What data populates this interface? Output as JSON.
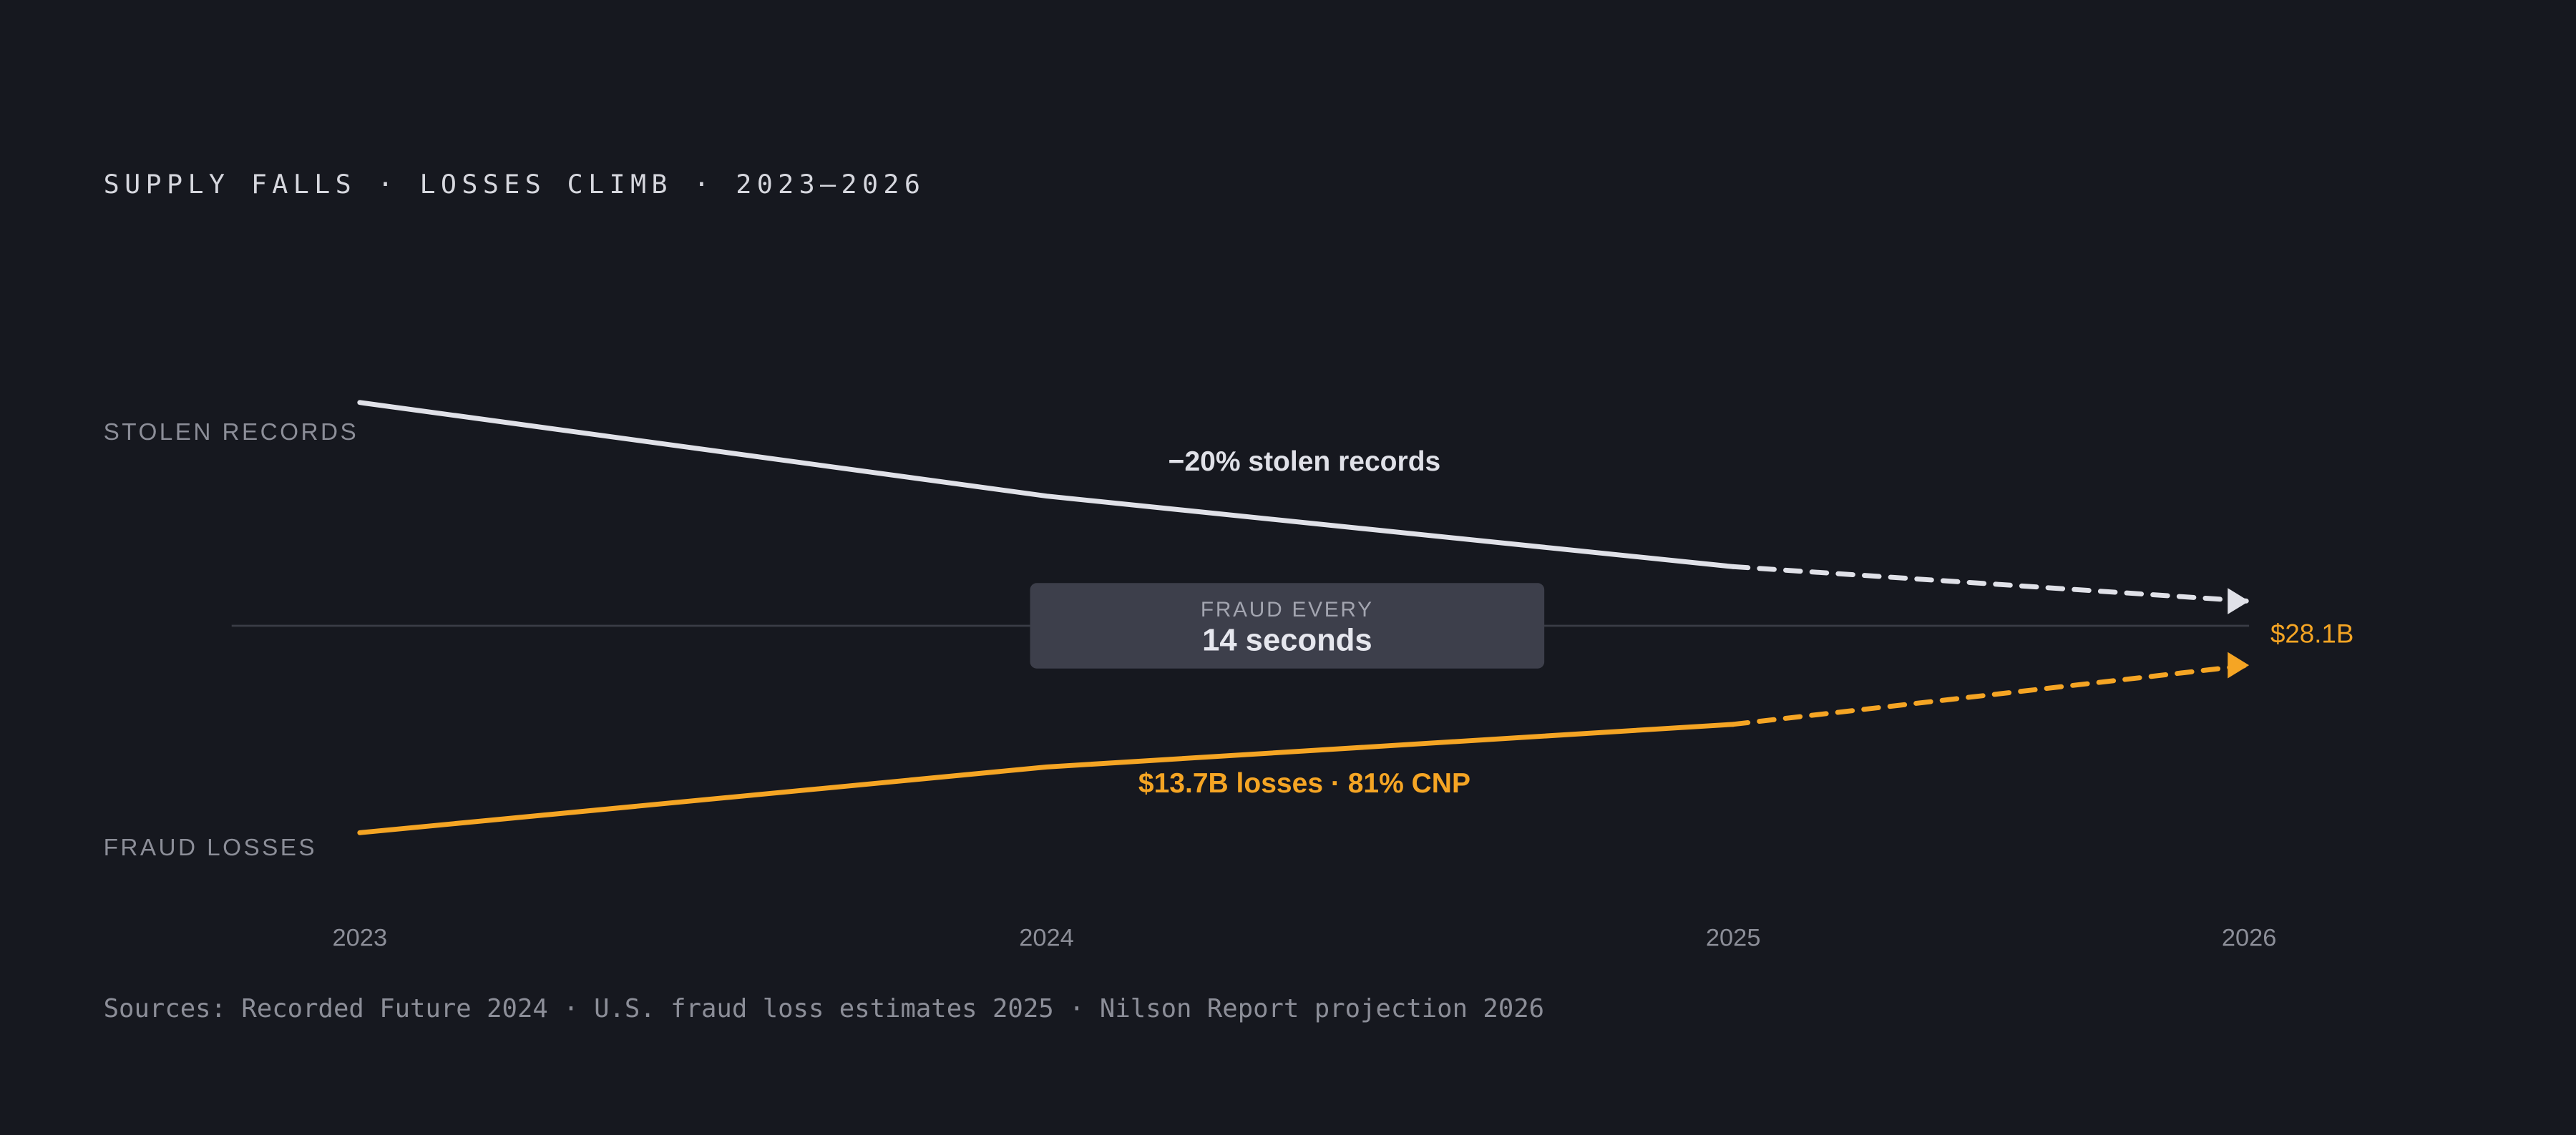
{
  "chart_data": {
    "type": "line",
    "title": "SUPPLY FALLS · LOSSES CLIMB · 2023–2026",
    "categories": [
      "2023",
      "2024",
      "2025",
      "2026"
    ],
    "series": [
      {
        "name": "STOLEN RECORDS",
        "color": "#e0e1e8",
        "values": [
          136,
          79,
          36,
          15
        ]
      },
      {
        "name": "FRAUD LOSSES",
        "color": "#f5a524",
        "values": [
          -126,
          -86,
          -60,
          -24
        ]
      }
    ],
    "ylim": [
      -150,
      150
    ],
    "dashed_from_index": 2,
    "annotations": [
      "−20% stolen records",
      "$13.7B losses · 81% CNP",
      "$28.1B"
    ],
    "callout": {
      "label": "FRAUD EVERY",
      "value": "14 seconds"
    },
    "source": "Sources: Recorded Future 2024 · U.S. fraud loss estimates 2025 · Nilson Report projection 2026"
  }
}
